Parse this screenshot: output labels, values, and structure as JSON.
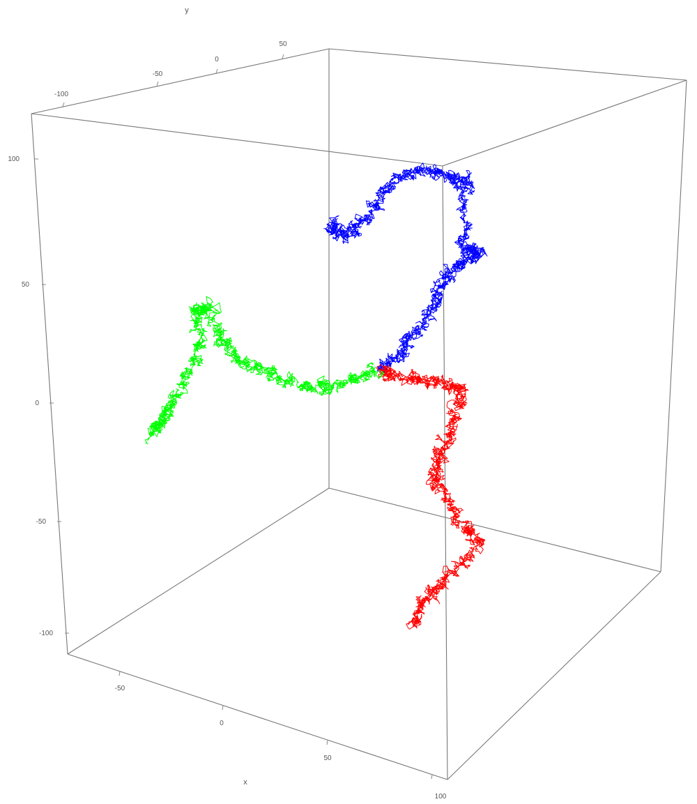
{
  "chart_data": {
    "type": "line",
    "subtype": "3d-random-walk",
    "title": "",
    "xlabel": "x",
    "ylabel": "y",
    "zlabel": "",
    "box": true,
    "grid": false,
    "legend": "none",
    "x_ticks": [
      "-50",
      "0",
      "50",
      "100"
    ],
    "y_ticks": [
      "-100",
      "-50",
      "0",
      "50"
    ],
    "z_ticks": [
      "-100",
      "-50",
      "0",
      "50",
      "100"
    ],
    "series": [
      {
        "color": "#0000ff",
        "anchors": [
          [
            -25,
            150
          ],
          [
            -10,
            140
          ],
          [
            10,
            155
          ],
          [
            30,
            185
          ],
          [
            60,
            195
          ],
          [
            85,
            190
          ],
          [
            100,
            180
          ],
          [
            95,
            130
          ],
          [
            110,
            125
          ],
          [
            90,
            115
          ],
          [
            75,
            95
          ],
          [
            60,
            65
          ],
          [
            40,
            40
          ],
          [
            20,
            25
          ]
        ]
      },
      {
        "color": "#ff0000",
        "anchors": [
          [
            20,
            25
          ],
          [
            45,
            20
          ],
          [
            70,
            15
          ],
          [
            95,
            10
          ],
          [
            85,
            -20
          ],
          [
            75,
            -50
          ],
          [
            70,
            -70
          ],
          [
            90,
            -100
          ],
          [
            110,
            -120
          ],
          [
            80,
            -150
          ],
          [
            60,
            -170
          ],
          [
            50,
            -190
          ]
        ]
      },
      {
        "color": "#00ff00",
        "anchors": [
          [
            20,
            25
          ],
          [
            -10,
            15
          ],
          [
            -40,
            10
          ],
          [
            -70,
            20
          ],
          [
            -100,
            30
          ],
          [
            -120,
            50
          ],
          [
            -135,
            80
          ],
          [
            -145,
            75
          ],
          [
            -140,
            40
          ],
          [
            -160,
            5
          ],
          [
            -175,
            -15
          ],
          [
            -185,
            -30
          ]
        ]
      }
    ]
  }
}
